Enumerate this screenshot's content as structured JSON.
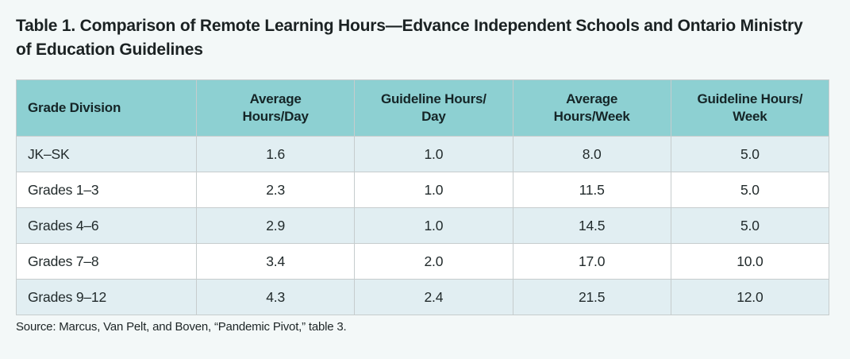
{
  "title": "Table 1. Comparison of Remote Learning Hours—Edvance Independent Schools and Ontario Ministry of Education Guidelines",
  "source": "Source: Marcus, Van Pelt, and Boven, “Pandemic Pivot,” table 3.",
  "table": {
    "columns": [
      {
        "label": "Grade Division",
        "lines": [
          "Grade Division",
          ""
        ]
      },
      {
        "label": "Average Hours/Day",
        "lines": [
          "Average",
          "Hours/Day"
        ]
      },
      {
        "label": "Guideline Hours/Day",
        "lines": [
          "Guideline Hours/",
          "Day"
        ]
      },
      {
        "label": "Average Hours/Week",
        "lines": [
          "Average",
          "Hours/Week"
        ]
      },
      {
        "label": "Guideline Hours/Week",
        "lines": [
          "Guideline Hours/",
          "Week"
        ]
      }
    ],
    "rows": [
      [
        "JK–SK",
        "1.6",
        "1.0",
        "8.0",
        "5.0"
      ],
      [
        "Grades 1–3",
        "2.3",
        "1.0",
        "11.5",
        "5.0"
      ],
      [
        "Grades 4–6",
        "2.9",
        "1.0",
        "14.5",
        "5.0"
      ],
      [
        "Grades 7–8",
        "3.4",
        "2.0",
        "17.0",
        "10.0"
      ],
      [
        "Grades 9–12",
        "4.3",
        "2.4",
        "21.5",
        "12.0"
      ]
    ]
  },
  "colors": {
    "page_background": "#f3f8f8",
    "header_background": "#8dd0d2",
    "row_alternate_background": "#e1eef2",
    "row_background": "#ffffff",
    "border": "#c6cccd",
    "text": "#1c2324"
  }
}
